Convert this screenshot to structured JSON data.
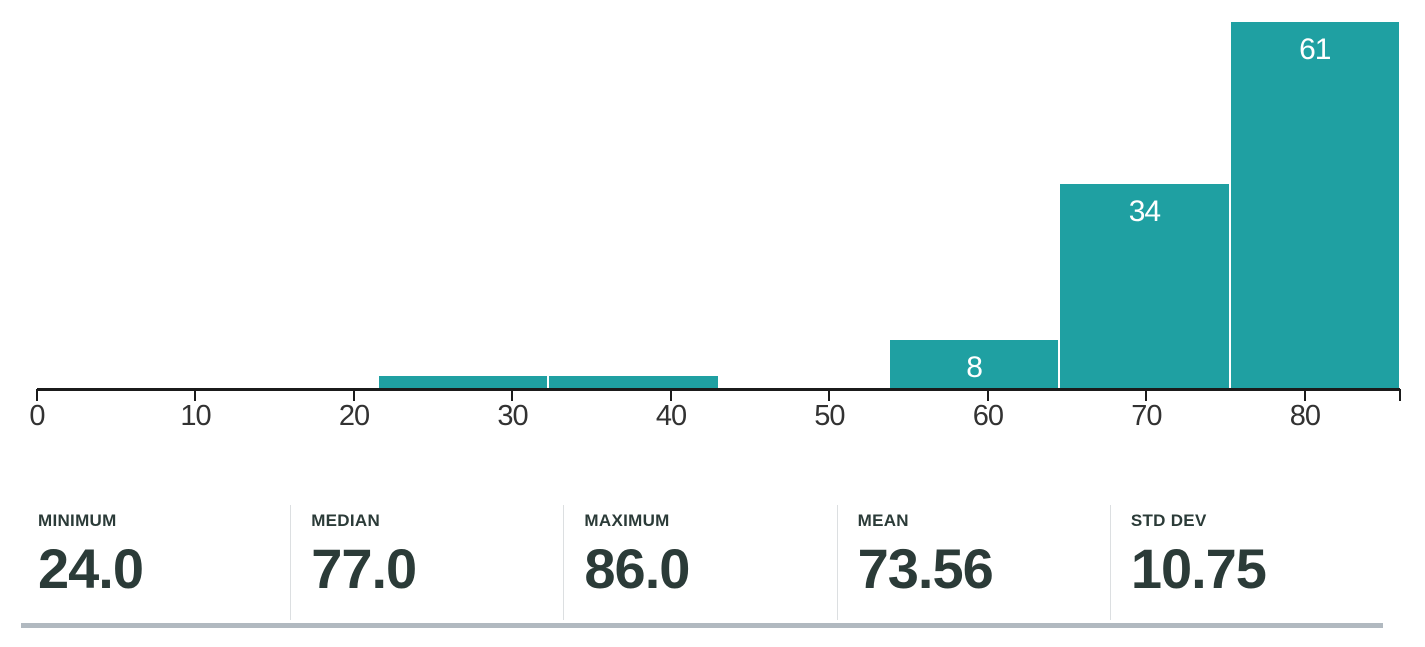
{
  "chart_data": {
    "type": "bar",
    "subtype": "histogram",
    "title": "",
    "xlabel": "",
    "ylabel": "",
    "bin_edges": [
      21.5,
      32.25,
      43,
      53.75,
      64.5,
      75.25,
      86
    ],
    "counts": [
      2,
      2,
      0,
      8,
      34,
      61
    ],
    "bar_labels": [
      "",
      "",
      "",
      "8",
      "34",
      "61"
    ],
    "x_ticks": [
      0,
      10,
      20,
      30,
      40,
      50,
      60,
      70,
      80
    ],
    "xlim": [
      0,
      86
    ],
    "grid": "off",
    "legend": "none",
    "bar_color": "#1fa0a2",
    "bar_label_color": "#ffffff",
    "axis_color": "#1b1b1b",
    "tick_label_color": "#323232"
  },
  "stats": {
    "items": [
      {
        "label": "MINIMUM",
        "value": "24.0"
      },
      {
        "label": "MEDIAN",
        "value": "77.0"
      },
      {
        "label": "MAXIMUM",
        "value": "86.0"
      },
      {
        "label": "MEAN",
        "value": "73.56"
      },
      {
        "label": "STD DEV",
        "value": "10.75"
      }
    ],
    "text_color": "#2b3b38",
    "divider_color": "#dcdfe1",
    "bottom_bar_color": "#b1b9c0"
  }
}
